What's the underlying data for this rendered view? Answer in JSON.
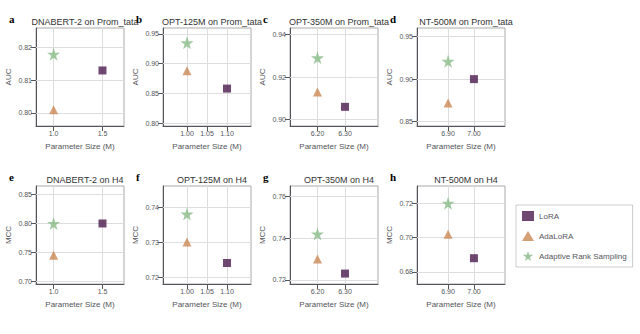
{
  "chart_data": [
    {
      "type": "scatter",
      "title": "DNABERT-2 on Prom_tata",
      "annotations": [
        {
          "text": "a"
        }
      ],
      "xlabel": "Parameter Size (M)",
      "ylabel": "AUC",
      "series": [
        {
          "name": "LoRA",
          "color": "#4B1A4E",
          "marker": "square",
          "x": [
            1.5
          ],
          "values": [
            0.813
          ]
        },
        {
          "name": "AdaLoRA",
          "color": "#CC8855",
          "marker": "triangle",
          "x": [
            1.0
          ],
          "values": [
            0.801
          ]
        },
        {
          "name": "Adaptive Rank Sampling",
          "color": "#88BB88",
          "marker": "star",
          "x": [
            1.0
          ],
          "values": [
            0.818
          ]
        }
      ],
      "xlim": [
        0.82,
        1.72
      ],
      "ylim": [
        0.796,
        0.826
      ],
      "xticks": [
        {
          "value": 1.0,
          "label": "1.0"
        },
        1.5
      ],
      "yticks": [
        {
          "value": 0.8,
          "label": "0.80"
        },
        0.81,
        0.82
      ],
      "grid": true
    },
    {
      "type": "scatter",
      "title": "OPT-125M on Prom_tata",
      "annotations": [
        {
          "text": "b"
        }
      ],
      "xlabel": "Parameter Size (M)",
      "ylabel": "AUC",
      "series": [
        {
          "name": "LoRA",
          "color": "#4B1A4E",
          "marker": "square",
          "x": [
            1.1
          ],
          "values": [
            0.858
          ]
        },
        {
          "name": "AdaLoRA",
          "color": "#CC8855",
          "marker": "triangle",
          "x": [
            1.0
          ],
          "values": [
            0.888
          ]
        },
        {
          "name": "Adaptive Rank Sampling",
          "color": "#88BB88",
          "marker": "star",
          "x": [
            1.0
          ],
          "values": [
            0.935
          ]
        }
      ],
      "xlim": [
        0.94,
        1.16
      ],
      "ylim": [
        0.795,
        0.96
      ],
      "xticks": [
        {
          "value": 1.0,
          "label": "1.00"
        },
        1.05,
        {
          "value": 1.1,
          "label": "1.10"
        }
      ],
      "yticks": [
        {
          "value": 0.8,
          "label": "0.80"
        },
        0.85,
        {
          "value": 0.9,
          "label": "0.90"
        },
        0.95
      ],
      "grid": true
    },
    {
      "type": "scatter",
      "title": "OPT-350M on Prom_tata",
      "annotations": [
        {
          "text": "c"
        }
      ],
      "xlabel": "Parameter Size (M)",
      "ylabel": "AUC",
      "series": [
        {
          "name": "LoRA",
          "color": "#4B1A4E",
          "marker": "square",
          "x": [
            6.3
          ],
          "values": [
            0.906
          ]
        },
        {
          "name": "AdaLoRA",
          "color": "#CC8855",
          "marker": "triangle",
          "x": [
            6.2
          ],
          "values": [
            0.913
          ]
        },
        {
          "name": "Adaptive Rank Sampling",
          "color": "#88BB88",
          "marker": "star",
          "x": [
            6.2
          ],
          "values": [
            0.929
          ]
        }
      ],
      "xlim": [
        6.1,
        6.42
      ],
      "ylim": [
        0.897,
        0.943
      ],
      "xticks": [
        {
          "value": 6.2,
          "label": "6.20"
        },
        {
          "value": 6.3,
          "label": "6.30"
        }
      ],
      "yticks": [
        {
          "value": 0.9,
          "label": "0.90"
        },
        0.92,
        0.94
      ],
      "grid": true
    },
    {
      "type": "scatter",
      "title": "NT-500M on Prom_tata",
      "annotations": [
        {
          "text": "d"
        }
      ],
      "xlabel": "Parameter Size (M)",
      "ylabel": "AUC",
      "series": [
        {
          "name": "LoRA",
          "color": "#4B1A4E",
          "marker": "square",
          "x": [
            7.0
          ],
          "values": [
            0.9
          ]
        },
        {
          "name": "AdaLoRA",
          "color": "#CC8855",
          "marker": "triangle",
          "x": [
            6.9
          ],
          "values": [
            0.872
          ]
        },
        {
          "name": "Adaptive Rank Sampling",
          "color": "#88BB88",
          "marker": "star",
          "x": [
            6.9
          ],
          "values": [
            0.921
          ]
        }
      ],
      "xlim": [
        6.78,
        7.12
      ],
      "ylim": [
        0.845,
        0.96
      ],
      "xticks": [
        {
          "value": 6.9,
          "label": "6.90"
        },
        {
          "value": 7.0,
          "label": "7.00"
        }
      ],
      "yticks": [
        0.85,
        {
          "value": 0.9,
          "label": "0.90"
        },
        0.95
      ],
      "grid": true
    },
    {
      "type": "scatter",
      "title": "DNABERT-2 on H4",
      "annotations": [
        {
          "text": "e"
        }
      ],
      "xlabel": "Parameter Size (M)",
      "ylabel": "MCC",
      "series": [
        {
          "name": "LoRA",
          "color": "#4B1A4E",
          "marker": "square",
          "x": [
            1.5
          ],
          "values": [
            0.8
          ]
        },
        {
          "name": "AdaLoRA",
          "color": "#CC8855",
          "marker": "triangle",
          "x": [
            1.0
          ],
          "values": [
            0.745
          ]
        },
        {
          "name": "Adaptive Rank Sampling",
          "color": "#88BB88",
          "marker": "star",
          "x": [
            1.0
          ],
          "values": [
            0.8
          ]
        }
      ],
      "xlim": [
        0.82,
        1.72
      ],
      "ylim": [
        0.695,
        0.865
      ],
      "xticks": [
        {
          "value": 1.0,
          "label": "1.0"
        },
        1.5
      ],
      "yticks": [
        {
          "value": 0.7,
          "label": "0.70"
        },
        0.75,
        {
          "value": 0.8,
          "label": "0.80"
        },
        0.85
      ],
      "grid": true
    },
    {
      "type": "scatter",
      "title": "OPT-125M on H4",
      "annotations": [
        {
          "text": "f"
        }
      ],
      "xlabel": "Parameter Size (M)",
      "ylabel": "MCC",
      "series": [
        {
          "name": "LoRA",
          "color": "#4B1A4E",
          "marker": "square",
          "x": [
            1.1
          ],
          "values": [
            0.724
          ]
        },
        {
          "name": "AdaLoRA",
          "color": "#CC8855",
          "marker": "triangle",
          "x": [
            1.0
          ],
          "values": [
            0.73
          ]
        },
        {
          "name": "Adaptive Rank Sampling",
          "color": "#88BB88",
          "marker": "star",
          "x": [
            1.0
          ],
          "values": [
            0.738
          ]
        }
      ],
      "xlim": [
        0.94,
        1.16
      ],
      "ylim": [
        0.718,
        0.746
      ],
      "xticks": [
        {
          "value": 1.0,
          "label": "1.00"
        },
        1.05,
        {
          "value": 1.1,
          "label": "1.10"
        }
      ],
      "yticks": [
        0.72,
        0.73,
        0.74
      ],
      "grid": true
    },
    {
      "type": "scatter",
      "title": "OPT-350M on H4",
      "annotations": [
        {
          "text": "g"
        }
      ],
      "xlabel": "Parameter Size (M)",
      "ylabel": "MCC",
      "series": [
        {
          "name": "LoRA",
          "color": "#4B1A4E",
          "marker": "square",
          "x": [
            6.3
          ],
          "values": [
            0.723
          ]
        },
        {
          "name": "AdaLoRA",
          "color": "#CC8855",
          "marker": "triangle",
          "x": [
            6.2
          ],
          "values": [
            0.73
          ]
        },
        {
          "name": "Adaptive Rank Sampling",
          "color": "#88BB88",
          "marker": "star",
          "x": [
            6.2
          ],
          "values": [
            0.742
          ]
        }
      ],
      "xlim": [
        6.1,
        6.42
      ],
      "ylim": [
        0.718,
        0.765
      ],
      "xticks": [
        {
          "value": 6.2,
          "label": "6.20"
        },
        {
          "value": 6.3,
          "label": "6.30"
        }
      ],
      "yticks": [
        0.72,
        0.74,
        0.76
      ],
      "grid": true
    },
    {
      "type": "scatter",
      "title": "NT-500M on H4",
      "annotations": [
        {
          "text": "h"
        }
      ],
      "xlabel": "Parameter Size (M)",
      "ylabel": "MCC",
      "series": [
        {
          "name": "LoRA",
          "color": "#4B1A4E",
          "marker": "square",
          "x": [
            7.0
          ],
          "values": [
            0.688
          ]
        },
        {
          "name": "AdaLoRA",
          "color": "#CC8855",
          "marker": "triangle",
          "x": [
            6.9
          ],
          "values": [
            0.702
          ]
        },
        {
          "name": "Adaptive Rank Sampling",
          "color": "#88BB88",
          "marker": "star",
          "x": [
            6.9
          ],
          "values": [
            0.72
          ]
        }
      ],
      "xlim": [
        6.78,
        7.12
      ],
      "ylim": [
        0.673,
        0.73
      ],
      "xticks": [
        {
          "value": 6.9,
          "label": "6.90"
        },
        {
          "value": 7.0,
          "label": "7.00"
        }
      ],
      "yticks": [
        0.68,
        {
          "value": 0.7,
          "label": "0.70"
        },
        0.72
      ],
      "grid": true,
      "legend": "right"
    }
  ]
}
